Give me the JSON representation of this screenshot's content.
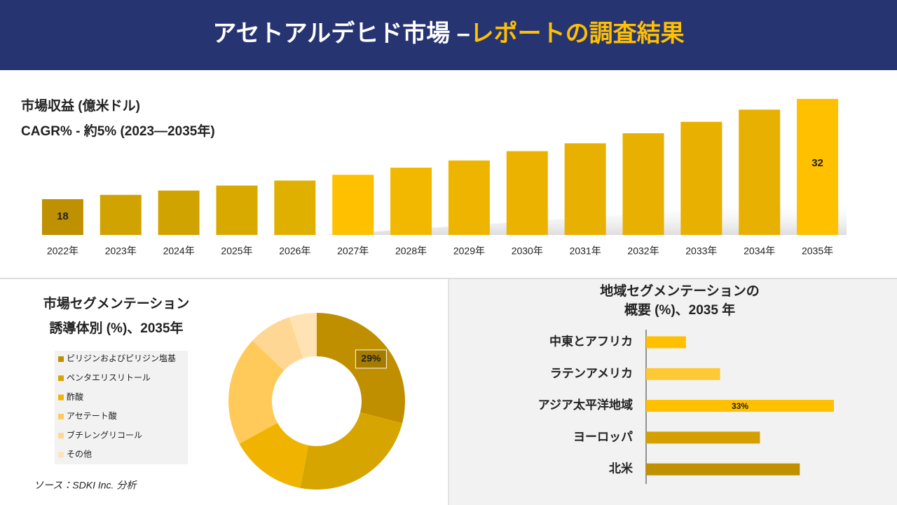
{
  "header": {
    "title": "アセトアルデヒド市場 –",
    "title_highlight": "レポートの調査結果"
  },
  "source": "ソース：SDKI Inc. 分析",
  "chart_data": [
    {
      "type": "bar",
      "title": "市場収益 (億米ドル)",
      "subtitle": "CAGR% - 約5% (2023―2035年)",
      "categories": [
        "2022年",
        "2023年",
        "2024年",
        "2025年",
        "2026年",
        "2027年",
        "2028年",
        "2029年",
        "2030年",
        "2031年",
        "2032年",
        "2033年",
        "2034年",
        "2035年"
      ],
      "values": [
        18,
        18.6,
        19.2,
        19.9,
        20.6,
        21.4,
        22.4,
        23.4,
        24.7,
        25.8,
        27.2,
        28.8,
        30.5,
        32
      ],
      "value_labels": [
        "18",
        null,
        null,
        null,
        null,
        null,
        null,
        null,
        null,
        null,
        null,
        null,
        null,
        "32"
      ],
      "colors": [
        "#bf9000",
        "#d1a300",
        "#d1a300",
        "#d8aa00",
        "#e0b000",
        "#ffc000",
        "#f2b800",
        "#eeb500",
        "#ebb300",
        "#e8b000",
        "#e8b000",
        "#e8b000",
        "#e8b000",
        "#ffc000"
      ],
      "ylim": [
        13,
        32
      ]
    },
    {
      "type": "donut",
      "title": "市場セグメンテーション",
      "subtitle": "誘導体別 (%)、2035年",
      "categories": [
        "ピリジンおよびピリジン塩基",
        "ペンタエリスリトール",
        "酢酸",
        "アセテート酸",
        "ブチレングリコール",
        "その他"
      ],
      "values": [
        29,
        24,
        14,
        20,
        8,
        5
      ],
      "value_labels": [
        "29%",
        null,
        null,
        null,
        null,
        null
      ],
      "colors": [
        "#bf8f00",
        "#d6a500",
        "#f0b400",
        "#ffca5a",
        "#ffd795",
        "#ffe3b5"
      ]
    },
    {
      "type": "hbar",
      "title": "地域セグメンテーションの",
      "subtitle": "概要 (%)、2035 年",
      "categories": [
        "中東とアフリカ",
        "ラテンアメリカ",
        "アジア太平洋地域",
        "ヨーロッパ",
        "北米"
      ],
      "values": [
        7,
        13,
        33,
        20,
        27
      ],
      "value_labels": [
        null,
        null,
        "33%",
        null,
        null
      ],
      "colors": [
        "#ffc000",
        "#ffc935",
        "#ffc000",
        "#d4a000",
        "#bf9000"
      ],
      "xlim": [
        0,
        33
      ]
    }
  ]
}
